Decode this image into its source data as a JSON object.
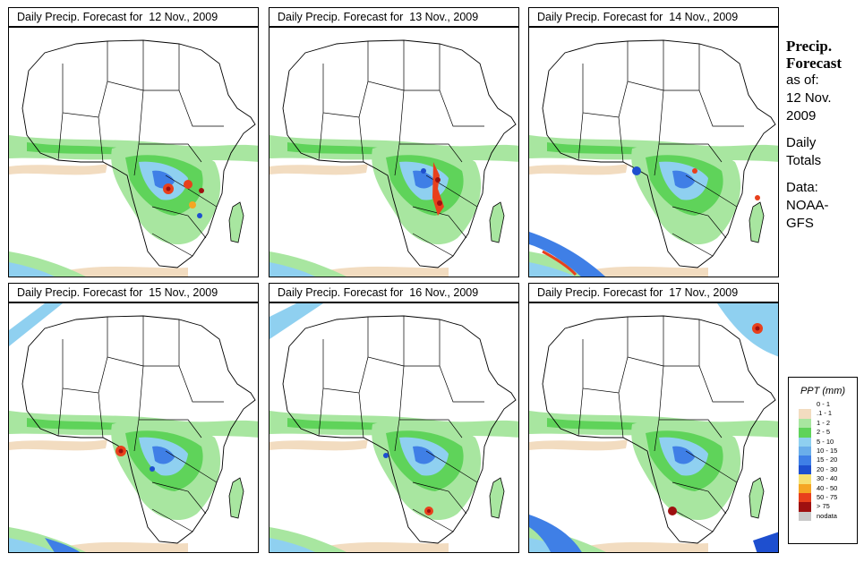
{
  "panels": [
    {
      "title": "Daily Precip. Forecast for  12 Nov., 2009"
    },
    {
      "title": "Daily Precip. Forecast for  13 Nov., 2009"
    },
    {
      "title": "Daily Precip. Forecast for  14 Nov., 2009"
    },
    {
      "title": "Daily Precip. Forecast for  15 Nov., 2009"
    },
    {
      "title": "Daily Precip. Forecast for  16 Nov., 2009"
    },
    {
      "title": "Daily Precip. Forecast for  17 Nov., 2009"
    }
  ],
  "info": {
    "title_line1": "Precip.",
    "title_line2": "Forecast",
    "asof_label": "as of:",
    "date_line1": "12 Nov.",
    "date_line2": "2009",
    "period_line1": "Daily",
    "period_line2": "Totals",
    "data_label": "Data:",
    "source_line1": "NOAA-",
    "source_line2": "GFS"
  },
  "legend": {
    "title": "PPT (mm)",
    "items": [
      {
        "label": "0 - 1",
        "color": "#ffffff"
      },
      {
        "label": ".1 - 1",
        "color": "#f2dcc0"
      },
      {
        "label": "1 - 2",
        "color": "#a8e6a0"
      },
      {
        "label": "2 - 5",
        "color": "#5fd35a"
      },
      {
        "label": "5 - 10",
        "color": "#8fd0f0"
      },
      {
        "label": "10 - 15",
        "color": "#6aaeea"
      },
      {
        "label": "15 - 20",
        "color": "#3f7fe6"
      },
      {
        "label": "20 - 30",
        "color": "#1e4fcf"
      },
      {
        "label": "30 - 40",
        "color": "#f6e070"
      },
      {
        "label": "40 - 50",
        "color": "#f5a623"
      },
      {
        "label": "50 - 75",
        "color": "#e8401c"
      },
      {
        "label": "> 75",
        "color": "#9e1010"
      },
      {
        "label": "nodata",
        "color": "#c8c8c8"
      }
    ]
  }
}
